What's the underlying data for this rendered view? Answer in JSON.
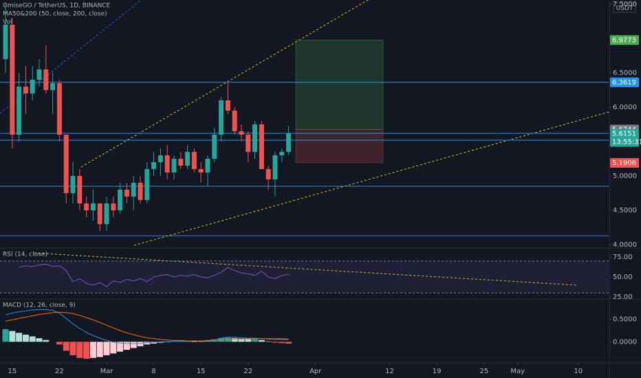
{
  "chart_data": [
    {
      "type": "candlestick",
      "title": "OmiseGO / TetherUS, 1D, BINANCE",
      "indicators": [
        "MA50&200 (50, close, 200, close)",
        "Vol"
      ],
      "unit": "USDT",
      "open": [
        6.7,
        7.2,
        5.6,
        6.3,
        6.2,
        6.4,
        6.55,
        6.25,
        6.35,
        5.6,
        4.75,
        5.0,
        4.6,
        4.5,
        4.6,
        4.3,
        4.6,
        4.5,
        4.8,
        4.7,
        4.9,
        4.65,
        5.1,
        5.2,
        5.3,
        5.05,
        5.25,
        5.15,
        5.35,
        5.1,
        5.05,
        5.25,
        5.6,
        6.1,
        5.95,
        5.65,
        5.6,
        5.35,
        5.75,
        5.1,
        4.95,
        5.3,
        5.35
      ],
      "high": [
        7.5,
        7.3,
        6.5,
        6.6,
        6.6,
        6.7,
        6.9,
        6.5,
        6.4,
        5.6,
        5.2,
        5.1,
        4.7,
        4.8,
        4.6,
        4.7,
        4.7,
        4.9,
        4.9,
        5.0,
        5.0,
        5.2,
        5.35,
        5.4,
        5.45,
        5.3,
        5.35,
        5.45,
        5.4,
        5.2,
        5.3,
        5.7,
        6.15,
        6.35,
        6.0,
        5.75,
        5.65,
        5.8,
        5.8,
        5.15,
        5.35,
        5.4,
        5.73
      ],
      "low": [
        6.5,
        5.4,
        5.5,
        5.9,
        6.1,
        6.3,
        6.2,
        5.9,
        5.5,
        4.6,
        4.6,
        4.5,
        4.4,
        4.35,
        4.2,
        4.2,
        4.4,
        4.45,
        4.6,
        4.5,
        4.6,
        4.6,
        5.0,
        5.0,
        4.95,
        4.95,
        5.1,
        5.1,
        5.05,
        4.9,
        4.85,
        5.2,
        5.5,
        5.9,
        5.6,
        5.5,
        5.2,
        5.25,
        5.1,
        4.8,
        4.7,
        5.2,
        5.3
      ],
      "close": [
        7.2,
        5.6,
        6.3,
        6.2,
        6.4,
        6.55,
        6.25,
        6.35,
        5.6,
        4.75,
        5.0,
        4.6,
        4.5,
        4.6,
        4.3,
        4.6,
        4.5,
        4.8,
        4.7,
        4.9,
        4.65,
        5.1,
        5.2,
        5.3,
        5.05,
        5.25,
        5.15,
        5.35,
        5.1,
        5.05,
        5.25,
        5.6,
        6.1,
        5.95,
        5.65,
        5.6,
        5.35,
        5.75,
        5.1,
        4.95,
        5.3,
        5.35,
        5.62
      ],
      "up_color": "#26a69a",
      "down_color": "#ef5350",
      "xlim": [
        -0.82,
        89.5
      ],
      "xticks": [
        {
          "value": 1,
          "label": "15"
        },
        {
          "value": 8,
          "label": "22"
        },
        {
          "value": 15,
          "label": "Mar"
        },
        {
          "value": 22,
          "label": "8"
        },
        {
          "value": 29,
          "label": "15"
        },
        {
          "value": 36,
          "label": "22"
        },
        {
          "value": 46,
          "label": "Apr"
        },
        {
          "value": 57,
          "label": "12"
        },
        {
          "value": 64,
          "label": "19"
        },
        {
          "value": 71,
          "label": "25"
        },
        {
          "value": 76,
          "label": "May"
        },
        {
          "value": 85,
          "label": "10"
        }
      ],
      "ylim": [
        3.96,
        7.56
      ],
      "yticks": [
        {
          "value": 7.5,
          "label": "7.5000"
        },
        {
          "value": 6.5,
          "label": "6.5000"
        },
        {
          "value": 6,
          "label": "6.0000"
        },
        {
          "value": 5,
          "label": "5.0000"
        },
        {
          "value": 4.5,
          "label": "4.5000"
        },
        {
          "value": 4,
          "label": "4.0000"
        }
      ],
      "levels": {
        "values": [
          6.3619,
          5.62,
          5.52,
          4.85,
          4.13
        ],
        "color": "#2196f3"
      },
      "position": {
        "target": 6.9773,
        "entry": 5.6744,
        "stop": 5.1906
      },
      "price_labels": [
        {
          "value": 6.9773,
          "color": "#4caf50"
        },
        {
          "value": 6.3619,
          "color": "#2196f3"
        },
        {
          "value": 5.6744,
          "color": "#787b86"
        },
        {
          "value": 5.6151,
          "color": "#26a69a"
        },
        {
          "value": 5.1906,
          "color": "#ef5350"
        }
      ],
      "countdown": "13:55:31"
    },
    {
      "type": "line",
      "title": "RSI (14, close)",
      "color": "#7e57c2",
      "values": [
        null,
        null,
        62,
        64,
        63,
        65,
        66,
        63,
        64,
        58,
        44,
        48,
        42,
        40,
        43,
        38,
        45,
        43,
        47,
        45,
        48,
        44,
        50,
        52,
        53,
        50,
        52,
        51,
        53,
        50,
        49,
        52,
        56,
        62,
        58,
        55,
        54,
        52,
        57,
        50,
        48,
        52,
        53
      ],
      "band": [
        30,
        70
      ],
      "ylim": [
        23.3,
        85.3
      ],
      "yticks": [
        {
          "value": 75,
          "label": "75.00"
        },
        {
          "value": 50,
          "label": "50.00"
        },
        {
          "value": 25,
          "label": "25.00"
        }
      ]
    },
    {
      "type": "macd",
      "title": "MACD (12, 26, close, 9)",
      "histogram": [
        0.28,
        0.24,
        0.2,
        0.16,
        0.12,
        0.08,
        0.04,
        0,
        -0.06,
        -0.2,
        -0.3,
        -0.36,
        -0.38,
        -0.36,
        -0.34,
        -0.3,
        -0.26,
        -0.22,
        -0.18,
        -0.14,
        -0.1,
        -0.06,
        -0.04,
        -0.02,
        -0.01,
        0.01,
        0.01,
        0.02,
        0.016,
        0.01,
        0.02,
        0.04,
        0.08,
        0.09,
        0.08,
        0.07,
        0.06,
        0.06,
        0.04,
        0.01,
        -0.02,
        -0.03,
        -0.04
      ],
      "series": [
        {
          "name": "MACD",
          "color": "#2196f3",
          "values": [
            0.6,
            0.64,
            0.67,
            0.69,
            0.71,
            0.72,
            0.72,
            0.7,
            0.64,
            0.52,
            0.4,
            0.3,
            0.21,
            0.14,
            0.08,
            0.03,
            -0.01,
            -0.03,
            -0.04,
            -0.04,
            -0.04,
            -0.02,
            -0.01,
            0,
            0,
            0.01,
            0.01,
            0.02,
            0.02,
            0.02,
            0.03,
            0.05,
            0.08,
            0.1,
            0.1,
            0.09,
            0.08,
            0.08,
            0.07,
            0.06,
            0.05,
            0.05,
            0.05
          ]
        },
        {
          "name": "Signal",
          "color": "#ff6d00",
          "values": [
            0.46,
            0.49,
            0.52,
            0.55,
            0.58,
            0.61,
            0.63,
            0.65,
            0.66,
            0.65,
            0.63,
            0.59,
            0.54,
            0.49,
            0.43,
            0.37,
            0.31,
            0.25,
            0.2,
            0.16,
            0.12,
            0.09,
            0.07,
            0.05,
            0.04,
            0.03,
            0.03,
            0.02,
            0.02,
            0.02,
            0.02,
            0.03,
            0.04,
            0.05,
            0.06,
            0.06,
            0.07,
            0.07,
            0.07,
            0.07,
            0.07,
            0.07,
            0.06
          ]
        }
      ],
      "ylim": [
        -0.455,
        0.94
      ],
      "yticks": [
        {
          "value": 0.5,
          "label": "0.5000"
        },
        {
          "value": 0,
          "label": "0.0000"
        }
      ]
    }
  ]
}
